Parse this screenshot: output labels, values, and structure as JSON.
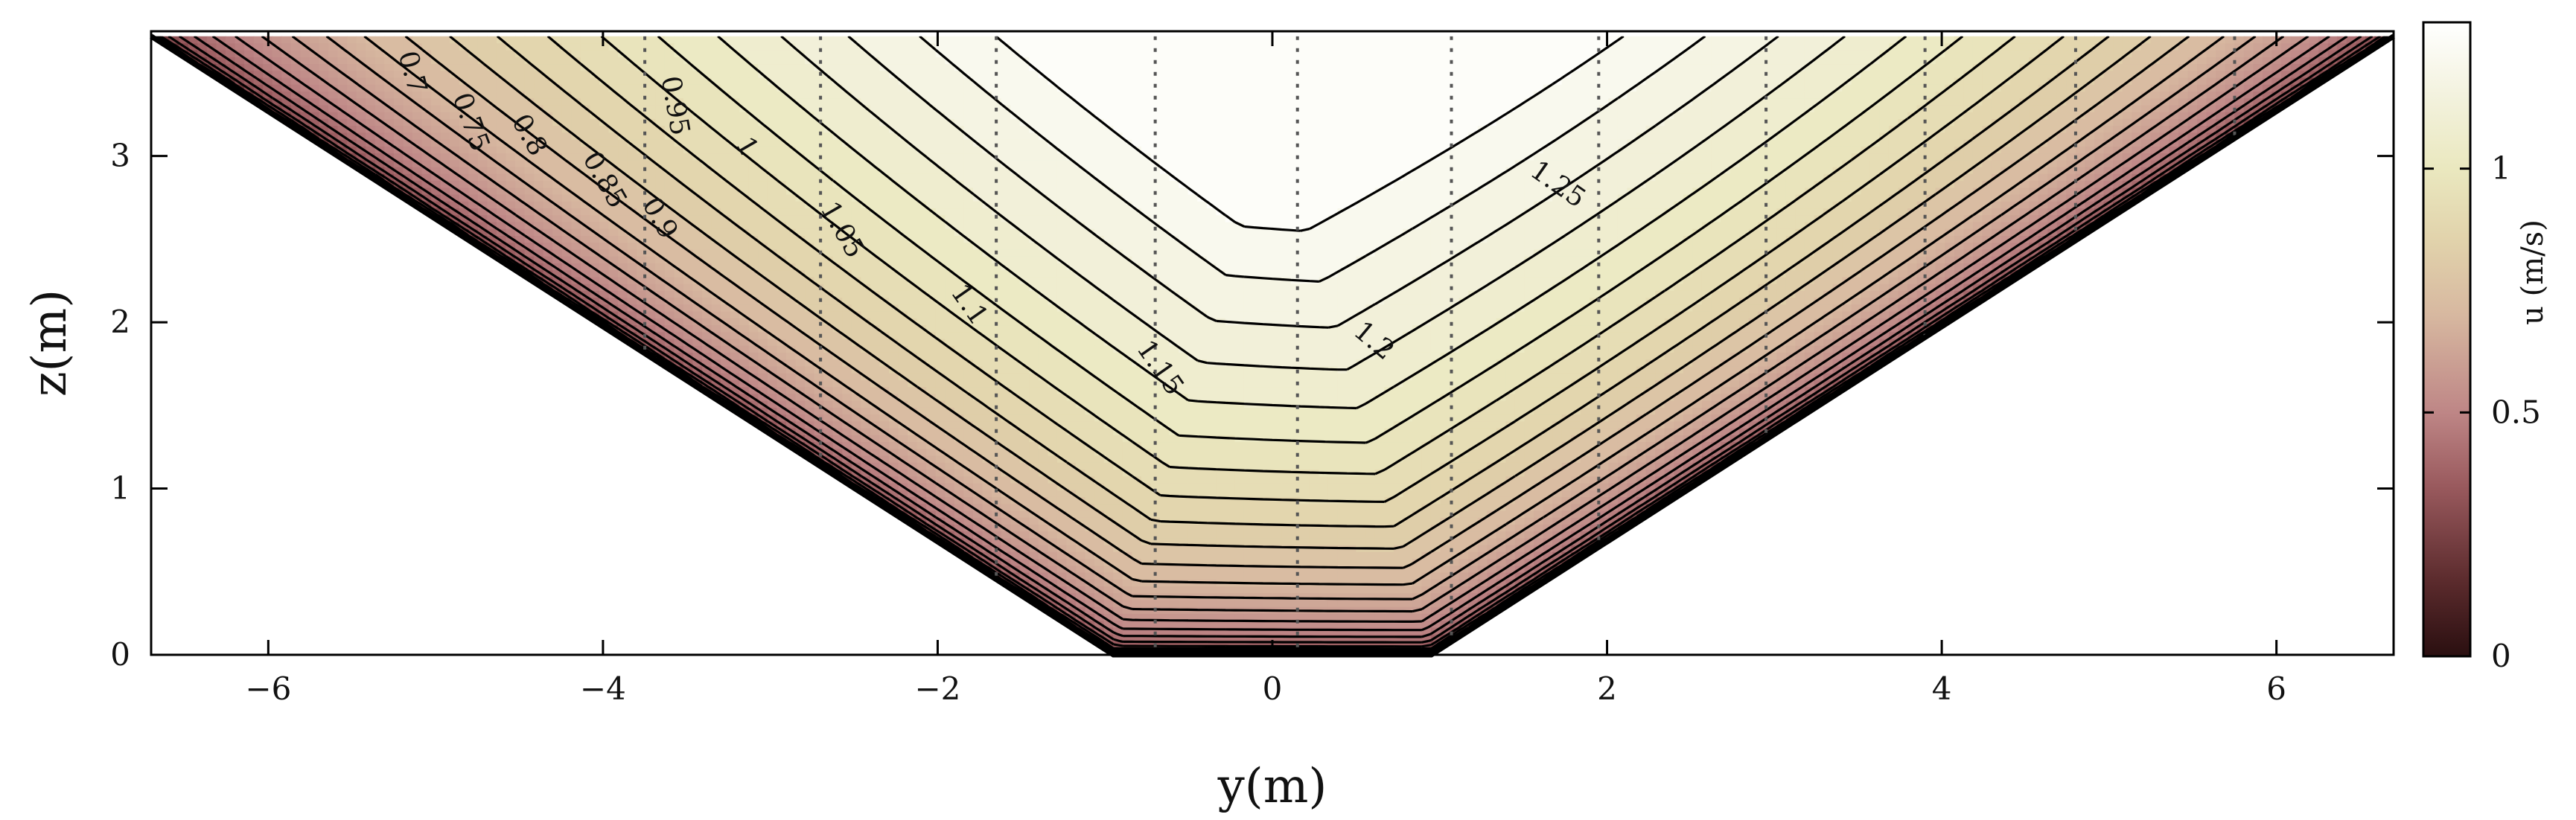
{
  "chart_data": {
    "type": "contour",
    "xlabel": "y(m)",
    "ylabel": "z(m)",
    "xlim": [
      -6.7,
      6.7
    ],
    "ylim": [
      0,
      3.75
    ],
    "xticks": [
      -6,
      -4,
      -2,
      0,
      2,
      4,
      6
    ],
    "xtick_labels": [
      "−6",
      "−4",
      "−2",
      "0",
      "2",
      "4",
      "6"
    ],
    "yticks": [
      0,
      1,
      2,
      3
    ],
    "ytick_labels": [
      "0",
      "1",
      "2",
      "3"
    ],
    "channel": {
      "surface_z": 3.72,
      "bed_half_width": 0.95,
      "top_half_width": 6.7,
      "cross_section": "trapezoidal"
    },
    "field": {
      "name": "u",
      "max_velocity": 1.28,
      "max_location": [
        1.3,
        3.72
      ]
    },
    "contour_levels": [
      0.7,
      0.75,
      0.8,
      0.85,
      0.9,
      0.95,
      1,
      1.05,
      1.1,
      1.15,
      1.2,
      1.25
    ],
    "contour_labels": [
      {
        "text": "0.7",
        "level": 0.7,
        "y": -5.15,
        "z": 3.5,
        "angle": 75
      },
      {
        "text": "0.75",
        "level": 0.75,
        "y": -4.8,
        "z": 3.2,
        "angle": 70
      },
      {
        "text": "0.8",
        "level": 0.8,
        "y": -4.45,
        "z": 3.12,
        "angle": 60
      },
      {
        "text": "0.85",
        "level": 0.85,
        "y": -4.0,
        "z": 2.85,
        "angle": 60
      },
      {
        "text": "0.9",
        "level": 0.9,
        "y": -3.67,
        "z": 2.62,
        "angle": 60
      },
      {
        "text": "0.95",
        "level": 0.95,
        "y": -3.58,
        "z": 3.3,
        "angle": 80
      },
      {
        "text": "1",
        "level": 1.0,
        "y": -3.15,
        "z": 3.05,
        "angle": 60
      },
      {
        "text": "1.05",
        "level": 1.05,
        "y": -2.58,
        "z": 2.55,
        "angle": 60
      },
      {
        "text": "1.1",
        "level": 1.1,
        "y": -1.82,
        "z": 2.1,
        "angle": 55
      },
      {
        "text": "1.15",
        "level": 1.15,
        "y": -0.68,
        "z": 1.72,
        "angle": 55
      },
      {
        "text": "1.2",
        "level": 1.2,
        "y": 0.6,
        "z": 1.88,
        "angle": 40
      },
      {
        "text": "1.25",
        "level": 1.25,
        "y": 1.7,
        "z": 2.82,
        "angle": 35
      }
    ],
    "vertical_profiles_y": [
      -3.75,
      -2.7,
      -1.65,
      -0.7,
      0.15,
      1.07,
      1.95,
      2.95,
      3.9,
      4.8,
      5.75
    ],
    "colorbar": {
      "label": "u (m/s)",
      "range": [
        0,
        1.3
      ],
      "ticks": [
        0,
        0.5,
        1
      ],
      "tick_labels": [
        "0",
        "0.5",
        "1"
      ],
      "colors": [
        {
          "v": 0.0,
          "c": "#2a0f10"
        },
        {
          "v": 0.15,
          "c": "#5a2a2c"
        },
        {
          "v": 0.35,
          "c": "#9a5a5e"
        },
        {
          "v": 0.5,
          "c": "#be8686"
        },
        {
          "v": 0.7,
          "c": "#d7b8a0"
        },
        {
          "v": 0.85,
          "c": "#e1d2ab"
        },
        {
          "v": 1.0,
          "c": "#eae8bf"
        },
        {
          "v": 1.15,
          "c": "#f3f2de"
        },
        {
          "v": 1.3,
          "c": "#ffffff"
        }
      ]
    }
  }
}
